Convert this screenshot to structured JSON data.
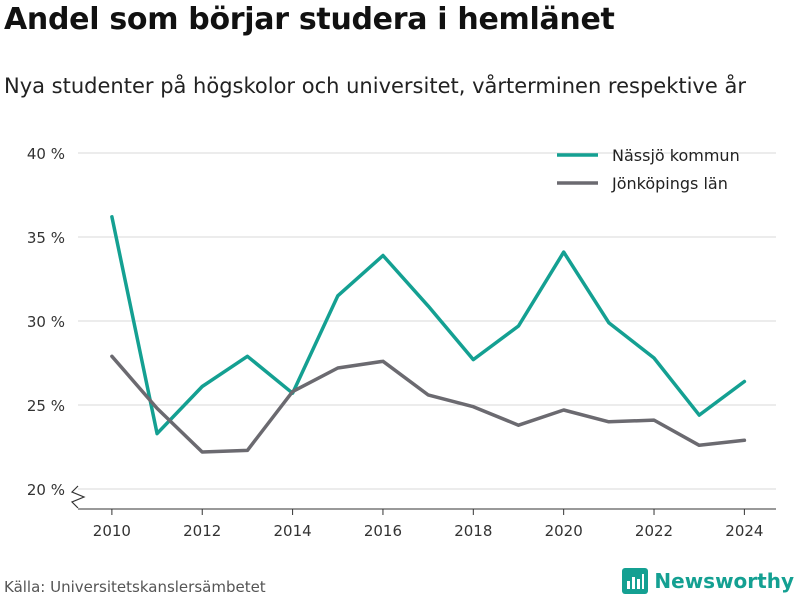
{
  "header": {
    "title": "Andel som börjar studera i hemlänet",
    "subtitle": "Nya studenter på högskolor och universitet, vårterminen respektive år"
  },
  "footer": {
    "source": "Källa: Universitetskanslersämbetet",
    "brand": "Newsworthy",
    "brand_color": "#14a092"
  },
  "chart_data": {
    "type": "line",
    "title": "Andel som börjar studera i hemlänet",
    "subtitle": "Nya studenter på högskolor och universitet, vårterminen respektive år",
    "x": [
      2010,
      2011,
      2012,
      2013,
      2014,
      2015,
      2016,
      2017,
      2018,
      2019,
      2020,
      2021,
      2022,
      2023,
      2024
    ],
    "series": [
      {
        "name": "Nässjö kommun",
        "color": "#14a092",
        "values": [
          36.2,
          23.3,
          26.1,
          27.9,
          25.7,
          31.5,
          33.9,
          30.9,
          27.7,
          29.7,
          34.1,
          29.9,
          27.8,
          24.4,
          26.4
        ]
      },
      {
        "name": "Jönköpings län",
        "color": "#6b6a70",
        "values": [
          27.9,
          24.8,
          22.2,
          22.3,
          25.8,
          27.2,
          27.6,
          25.6,
          24.9,
          23.8,
          24.7,
          24.0,
          24.1,
          22.6,
          22.9
        ]
      }
    ],
    "ylim": [
      20,
      40
    ],
    "yticks": [
      20,
      25,
      30,
      35,
      40
    ],
    "ytick_labels": [
      "20 %",
      "25 %",
      "30 %",
      "35 %",
      "40 %"
    ],
    "xticks": [
      2010,
      2012,
      2014,
      2016,
      2018,
      2020,
      2022,
      2024
    ],
    "xtick_labels": [
      "2010",
      "2012",
      "2014",
      "2016",
      "2018",
      "2020",
      "2022",
      "2024"
    ],
    "xlim": [
      2009.25,
      2024.7
    ],
    "grid": true,
    "y_axis_break": true,
    "legend": "top-right"
  }
}
